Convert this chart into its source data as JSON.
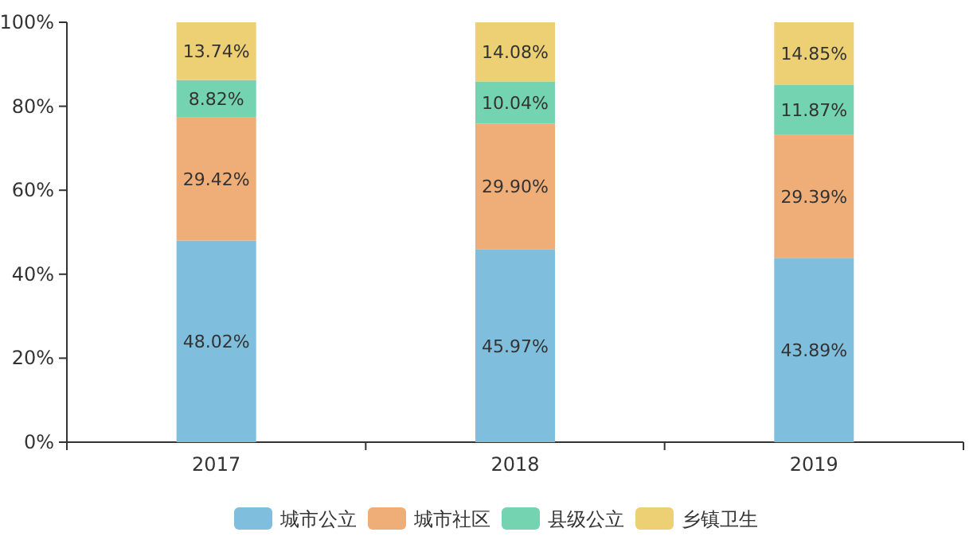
{
  "chart_data": {
    "type": "bar",
    "stacked": true,
    "categories": [
      "2017",
      "2018",
      "2019"
    ],
    "series": [
      {
        "name": "城市公立",
        "color": "#7fbfdd",
        "values": [
          48.02,
          45.97,
          43.89
        ],
        "value_labels": [
          "48.02%",
          "45.97%",
          "43.89%"
        ]
      },
      {
        "name": "城市社区",
        "color": "#efae78",
        "values": [
          29.42,
          29.9,
          29.39
        ],
        "value_labels": [
          "29.42%",
          "29.90%",
          "29.39%"
        ]
      },
      {
        "name": "县级公立",
        "color": "#74d3b1",
        "values": [
          8.82,
          10.04,
          11.87
        ],
        "value_labels": [
          "8.82%",
          "10.04%",
          "11.87%"
        ]
      },
      {
        "name": "乡镇卫生",
        "color": "#edd074",
        "values": [
          13.74,
          14.08,
          14.85
        ],
        "value_labels": [
          "13.74%",
          "14.08%",
          "14.85%"
        ]
      }
    ],
    "ylim": [
      0,
      100
    ],
    "yticks": [
      {
        "value": 0,
        "label": "0%"
      },
      {
        "value": 20,
        "label": "20%"
      },
      {
        "value": 40,
        "label": "40%"
      },
      {
        "value": 60,
        "label": "60%"
      },
      {
        "value": 80,
        "label": "80%"
      },
      {
        "value": 100,
        "label": "100%"
      }
    ],
    "legend": "bottom"
  }
}
